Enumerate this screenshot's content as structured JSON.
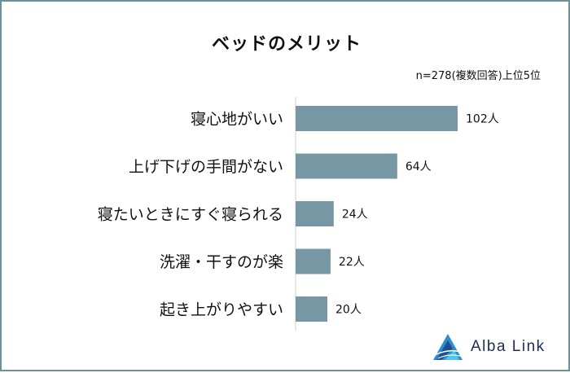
{
  "chart_data": {
    "type": "bar",
    "orientation": "horizontal",
    "title": "ベッドのメリット",
    "note": "n=278(複数回答)上位5位",
    "categories": [
      "寝心地がいい",
      "上げ下げの手間がない",
      "寝たいときにすぐ寝られる",
      "洗濯・干すのが楽",
      "起き上がりやすい"
    ],
    "values": [
      102,
      64,
      24,
      22,
      20
    ],
    "value_labels": [
      "102人",
      "64人",
      "24人",
      "22人",
      "20人"
    ],
    "bar_color": "#7697a3",
    "grid": false,
    "legend": "none"
  },
  "brand": {
    "name": "Alba Link",
    "colors": [
      "#1f4e8c",
      "#2b8ccf",
      "#4fc3e8"
    ]
  }
}
